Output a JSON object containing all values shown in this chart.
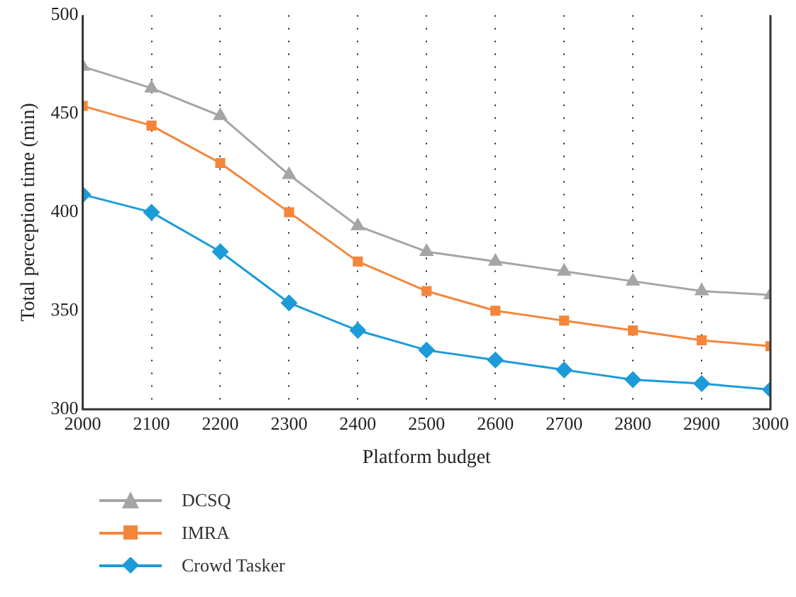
{
  "chart_data": {
    "type": "line",
    "xlabel": "Platform budget",
    "ylabel": "Total perception time (min)",
    "x": [
      2000,
      2100,
      2200,
      2300,
      2400,
      2500,
      2600,
      2700,
      2800,
      2900,
      3000
    ],
    "xlim": [
      2000,
      3000
    ],
    "xticks": [
      2000,
      2100,
      2200,
      2300,
      2400,
      2500,
      2600,
      2700,
      2800,
      2900,
      3000
    ],
    "ylim": [
      300,
      500
    ],
    "yticks": [
      300,
      350,
      400,
      450,
      500
    ],
    "grid": "x",
    "legend": "bottom",
    "series": [
      {
        "name": "DCSQ",
        "color": "#a5a5a5",
        "marker": "triangle",
        "values": [
          474,
          463,
          449,
          419,
          393,
          380,
          375,
          370,
          365,
          360,
          358
        ]
      },
      {
        "name": "IMRA",
        "color": "#f4863b",
        "marker": "square",
        "values": [
          454,
          444,
          425,
          400,
          375,
          360,
          350,
          345,
          340,
          335,
          332
        ]
      },
      {
        "name": "Crowd Tasker",
        "color": "#1c9bd8",
        "marker": "diamond",
        "values": [
          409,
          400,
          380,
          354,
          340,
          330,
          325,
          320,
          315,
          313,
          310
        ]
      }
    ]
  }
}
